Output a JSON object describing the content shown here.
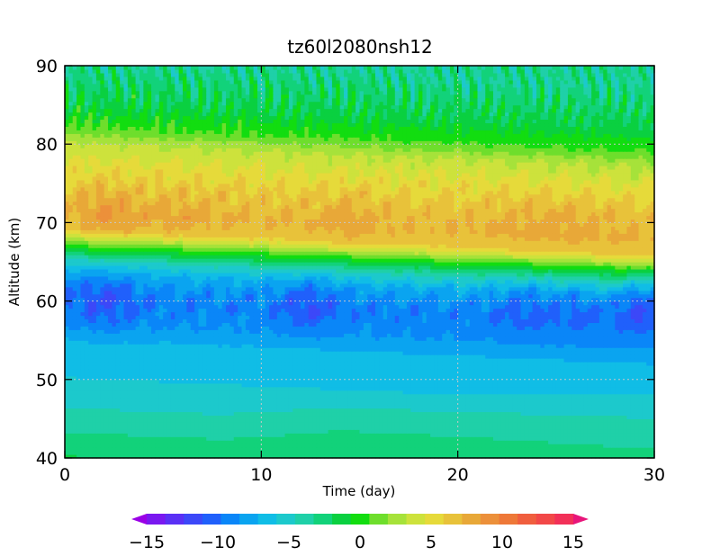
{
  "chart_data": {
    "type": "heatmap",
    "title": "tz60l2080nsh12",
    "xlabel": "Time (day)",
    "ylabel": "Altitude (km)",
    "xlim": [
      0,
      30
    ],
    "ylim": [
      40,
      90
    ],
    "xticks": [
      0,
      10,
      20,
      30
    ],
    "yticks": [
      40,
      50,
      60,
      70,
      80,
      90
    ],
    "grid": "dotted",
    "colorbar": {
      "orientation": "horizontal",
      "placement": "bottom",
      "min": -15,
      "max": 15,
      "step": 1.5,
      "extend": "both",
      "ticks": [
        -15,
        -10,
        -5,
        0,
        5,
        10,
        15
      ],
      "colors": [
        "#9a00e6",
        "#7a18f0",
        "#5a30f5",
        "#3c48f8",
        "#2060fb",
        "#0a86f8",
        "#0aa4f0",
        "#10bde6",
        "#1cc9cc",
        "#1fd0a8",
        "#12d27a",
        "#0ad040",
        "#12dd10",
        "#6ede2c",
        "#a6e23a",
        "#cde23c",
        "#e6da3a",
        "#e8c23a",
        "#e8a838",
        "#ec903a",
        "#ee7838",
        "#f05e3e",
        "#f24848",
        "#f23058",
        "#e8157a"
      ]
    },
    "profile_mean": {
      "altitude_km": [
        40,
        42,
        45,
        48,
        50,
        53,
        55,
        57,
        60,
        62,
        63.5,
        65,
        66,
        67,
        68,
        69,
        71,
        74,
        77,
        80,
        82,
        85,
        88,
        90
      ],
      "value": [
        0,
        -1,
        -2.5,
        -3.8,
        -4.5,
        -5.2,
        -6,
        -7.5,
        -8.5,
        -7.5,
        -6,
        -3,
        0,
        3,
        6.5,
        9.5,
        10.5,
        9.5,
        8,
        6,
        3,
        0.5,
        -0.5,
        -1.5
      ]
    }
  }
}
